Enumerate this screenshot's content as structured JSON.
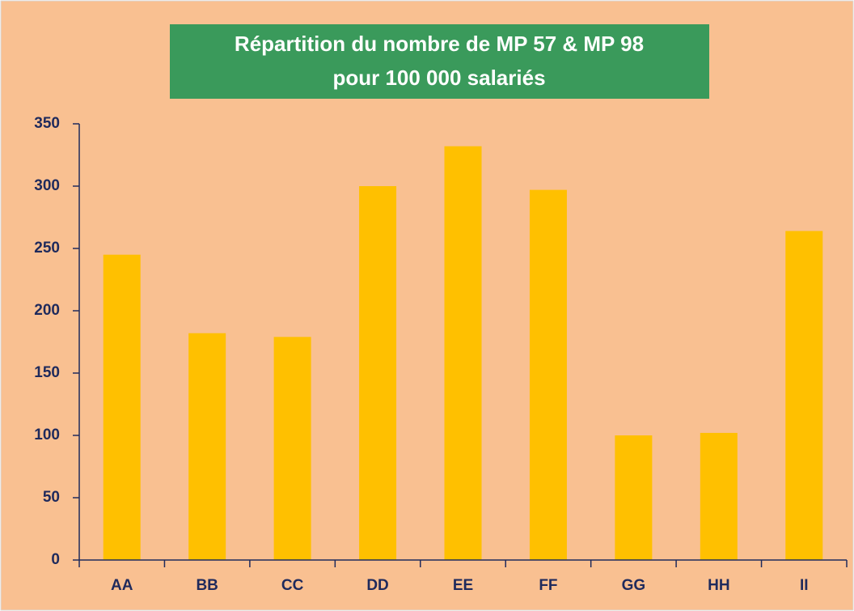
{
  "chart_data": {
    "type": "bar",
    "title": [
      "Répartition du nombre de MP 57 & MP 98",
      "pour 100 000 salariés"
    ],
    "categories": [
      "AA",
      "BB",
      "CC",
      "DD",
      "EE",
      "FF",
      "GG",
      "HH",
      "II"
    ],
    "values": [
      245,
      182,
      179,
      300,
      332,
      297,
      100,
      102,
      264
    ],
    "color": "#ffc000",
    "ylim": [
      0,
      350
    ],
    "yticks": [
      0,
      50,
      100,
      150,
      200,
      250,
      300,
      350
    ],
    "grid": false
  }
}
